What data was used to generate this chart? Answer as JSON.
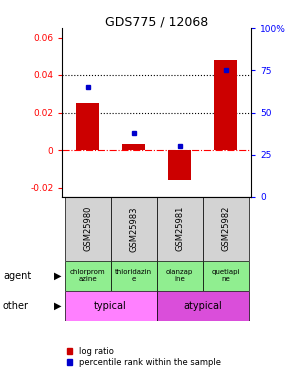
{
  "title": "GDS775 / 12068",
  "samples": [
    "GSM25980",
    "GSM25983",
    "GSM25981",
    "GSM25982"
  ],
  "log_ratio": [
    0.025,
    0.003,
    -0.016,
    0.048
  ],
  "percentile_rank_pct": [
    65,
    38,
    30,
    75
  ],
  "bar_color": "#cc0000",
  "dot_color": "#0000cc",
  "ylim_left": [
    -0.025,
    0.065
  ],
  "ylim_right": [
    0,
    100
  ],
  "yticks_left": [
    -0.02,
    0.0,
    0.02,
    0.04,
    0.06
  ],
  "ytick_labels_left": [
    "-0.02",
    "0",
    "0.02",
    "0.04",
    "0.06"
  ],
  "yticks_right": [
    0,
    25,
    50,
    75,
    100
  ],
  "ytick_labels_right": [
    "0",
    "25",
    "50",
    "75",
    "100%"
  ],
  "hlines_dotted": [
    0.02,
    0.04
  ],
  "agent_labels": [
    "chlorprom\nazine",
    "thioridazin\ne",
    "olanzap\nine",
    "quetiapi\nne"
  ],
  "gsm_bg": "#d3d3d3",
  "agent_bg": "#90EE90",
  "typical_bg": "#FF80FF",
  "atypical_bg": "#DA4EDA",
  "typical_label": "typical",
  "atypical_label": "atypical",
  "legend_label_red": "log ratio",
  "legend_label_blue": "percentile rank within the sample"
}
